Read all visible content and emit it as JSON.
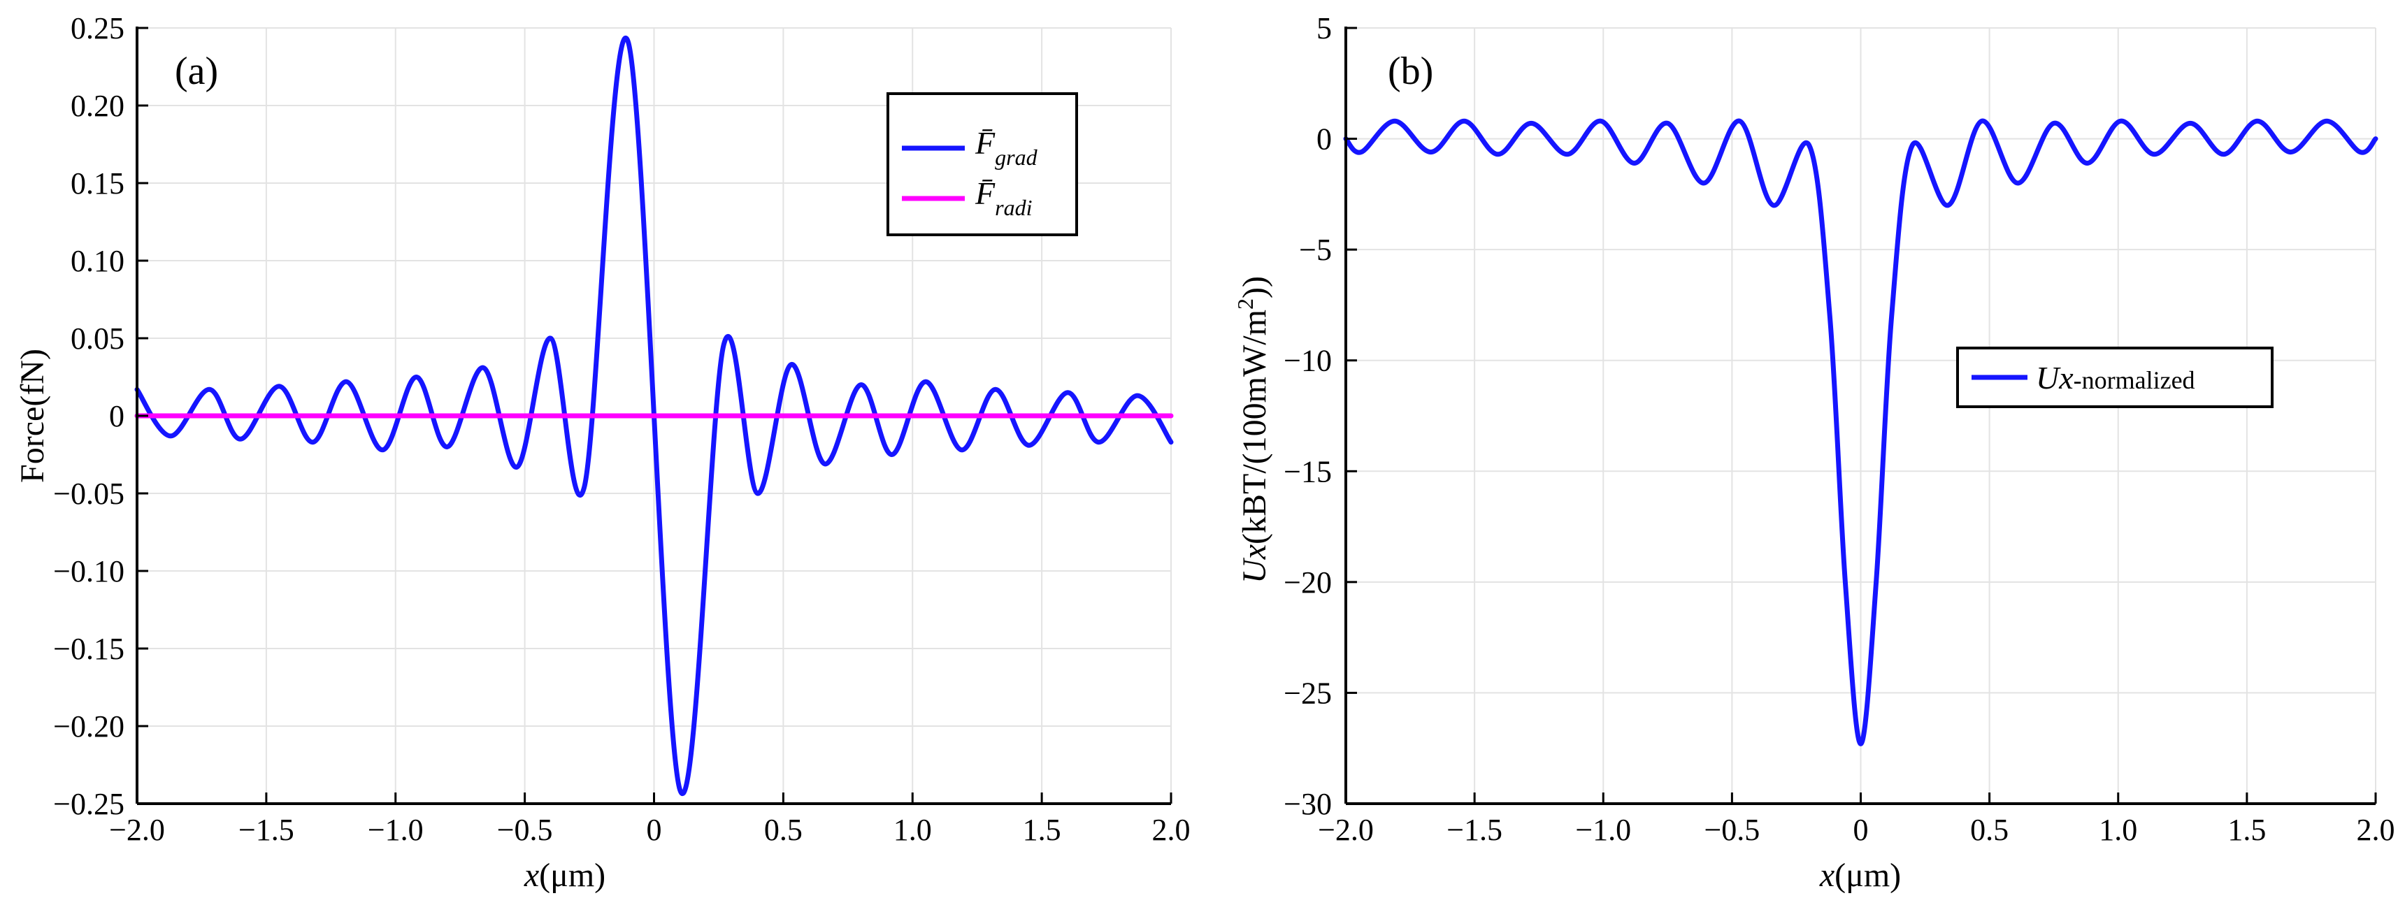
{
  "chart_data": [
    {
      "panel_label": "(a)",
      "type": "line",
      "xlabel_var": "x",
      "xlabel_unit": "(μm)",
      "ylabel": "Force(fN)",
      "xlim": [
        -2.0,
        2.0
      ],
      "ylim": [
        -0.25,
        0.25
      ],
      "x_ticks": [
        -2.0,
        -1.5,
        -1.0,
        -0.5,
        0,
        0.5,
        1.0,
        1.5,
        2.0
      ],
      "x_tick_labels": [
        "−2.0",
        "−1.5",
        "−1.0",
        "−0.5",
        "0",
        "0.5",
        "1.0",
        "1.5",
        "2.0"
      ],
      "y_ticks": [
        0.25,
        0.2,
        0.15,
        0.1,
        0.05,
        0,
        -0.05,
        -0.1,
        -0.15,
        -0.2,
        -0.25
      ],
      "y_tick_labels": [
        "0.25",
        "0.20",
        "0.15",
        "0.10",
        "0.05",
        "0",
        "−0.05",
        "−0.10",
        "−0.15",
        "−0.20",
        "−0.25"
      ],
      "grid": true,
      "legend_position": "top-right",
      "series": [
        {
          "name": "F grad",
          "legend_main": "F̄",
          "legend_sub": "grad",
          "color": "#1515ff",
          "x": [
            -2.0,
            -1.87,
            -1.72,
            -1.6,
            -1.45,
            -1.32,
            -1.19,
            -1.05,
            -0.92,
            -0.8,
            -0.66,
            -0.53,
            -0.4,
            -0.27,
            -0.1,
            0.1,
            0.27,
            0.4,
            0.53,
            0.66,
            0.8,
            0.92,
            1.05,
            1.19,
            1.32,
            1.45,
            1.6,
            1.72,
            1.87,
            2.0
          ],
          "y": [
            0.017,
            -0.013,
            0.017,
            -0.015,
            0.019,
            -0.017,
            0.022,
            -0.022,
            0.025,
            -0.02,
            0.031,
            -0.033,
            0.05,
            -0.046,
            0.241,
            -0.241,
            0.046,
            -0.05,
            0.033,
            -0.031,
            0.02,
            -0.025,
            0.022,
            -0.022,
            0.017,
            -0.019,
            0.015,
            -0.017,
            0.013,
            -0.017
          ]
        },
        {
          "name": "F radi",
          "legend_main": "F̄",
          "legend_sub": "radi",
          "color": "#ff00ff",
          "x": [
            -2.0,
            2.0
          ],
          "y": [
            0,
            0
          ]
        }
      ]
    },
    {
      "panel_label": "(b)",
      "type": "line",
      "xlabel_var": "x",
      "xlabel_unit": "(μm)",
      "ylabel_var": "Ux",
      "ylabel_rest": "(kBT/(100mW/m",
      "ylabel_sup": "2",
      "ylabel_end": "))",
      "xlim": [
        -2.0,
        2.0
      ],
      "ylim": [
        -30,
        5
      ],
      "x_ticks": [
        -2.0,
        -1.5,
        -1.0,
        -0.5,
        0,
        0.5,
        1.0,
        1.5,
        2.0
      ],
      "x_tick_labels": [
        "−2.0",
        "−1.5",
        "−1.0",
        "−0.5",
        "0",
        "0.5",
        "1.0",
        "1.5",
        "2.0"
      ],
      "y_ticks": [
        5,
        0,
        -5,
        -10,
        -15,
        -20,
        -25,
        -30
      ],
      "y_tick_labels": [
        "5",
        "0",
        "−5",
        "−10",
        "−15",
        "−20",
        "−25",
        "−30"
      ],
      "grid": true,
      "legend_position": "center-right",
      "series": [
        {
          "name": "Ux-normalized",
          "legend_var": "Ux",
          "legend_rest": "-normalized",
          "color": "#1515ff",
          "x": [
            -2.0,
            -1.94,
            -1.81,
            -1.67,
            -1.54,
            -1.41,
            -1.28,
            -1.14,
            -1.01,
            -0.88,
            -0.75,
            -0.61,
            -0.47,
            -0.34,
            -0.2,
            -0.12,
            -0.06,
            0,
            0.06,
            0.12,
            0.2,
            0.34,
            0.47,
            0.61,
            0.75,
            0.88,
            1.01,
            1.14,
            1.28,
            1.41,
            1.54,
            1.67,
            1.81,
            1.94,
            2.0
          ],
          "y": [
            0,
            -0.6,
            0.8,
            -0.6,
            0.8,
            -0.7,
            0.7,
            -0.7,
            0.8,
            -1.1,
            0.7,
            -2.0,
            0.8,
            -3.0,
            -0.3,
            -8.0,
            -20.0,
            -27.3,
            -20.0,
            -8.0,
            -0.3,
            -3.0,
            0.8,
            -2.0,
            0.7,
            -1.1,
            0.8,
            -0.7,
            0.7,
            -0.7,
            0.8,
            -0.6,
            0.8,
            -0.6,
            0
          ]
        }
      ]
    }
  ]
}
